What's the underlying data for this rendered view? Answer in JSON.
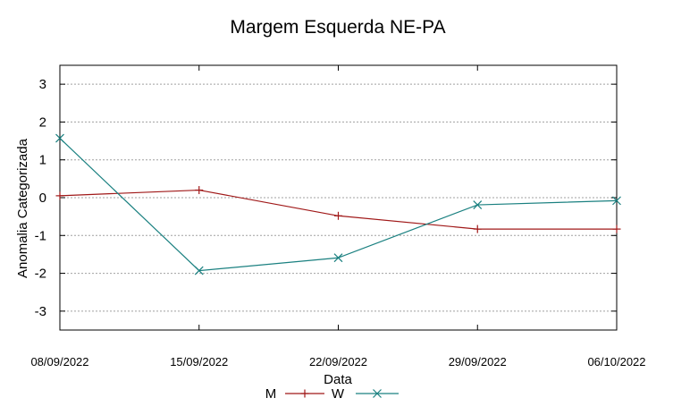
{
  "chart_data": {
    "type": "line",
    "title": "Margem Esquerda NE-PA",
    "xlabel": "Data",
    "ylabel": "Anomalia Categorizada",
    "x": [
      "08/09/2022",
      "15/09/2022",
      "22/09/2022",
      "29/09/2022",
      "06/10/2022"
    ],
    "ylim": [
      -3.5,
      3.5
    ],
    "yticks": [
      3,
      2,
      1,
      0,
      -1,
      -2,
      -3
    ],
    "grid": true,
    "legend": "bottom-center",
    "series": [
      {
        "name": "M",
        "color": "#a01818",
        "marker": "plus",
        "values": [
          0.05,
          0.2,
          -0.48,
          -0.83,
          -0.83
        ]
      },
      {
        "name": "W",
        "color": "#1a8080",
        "marker": "x",
        "values": [
          1.57,
          -1.93,
          -1.59,
          -0.19,
          -0.08
        ]
      }
    ]
  }
}
